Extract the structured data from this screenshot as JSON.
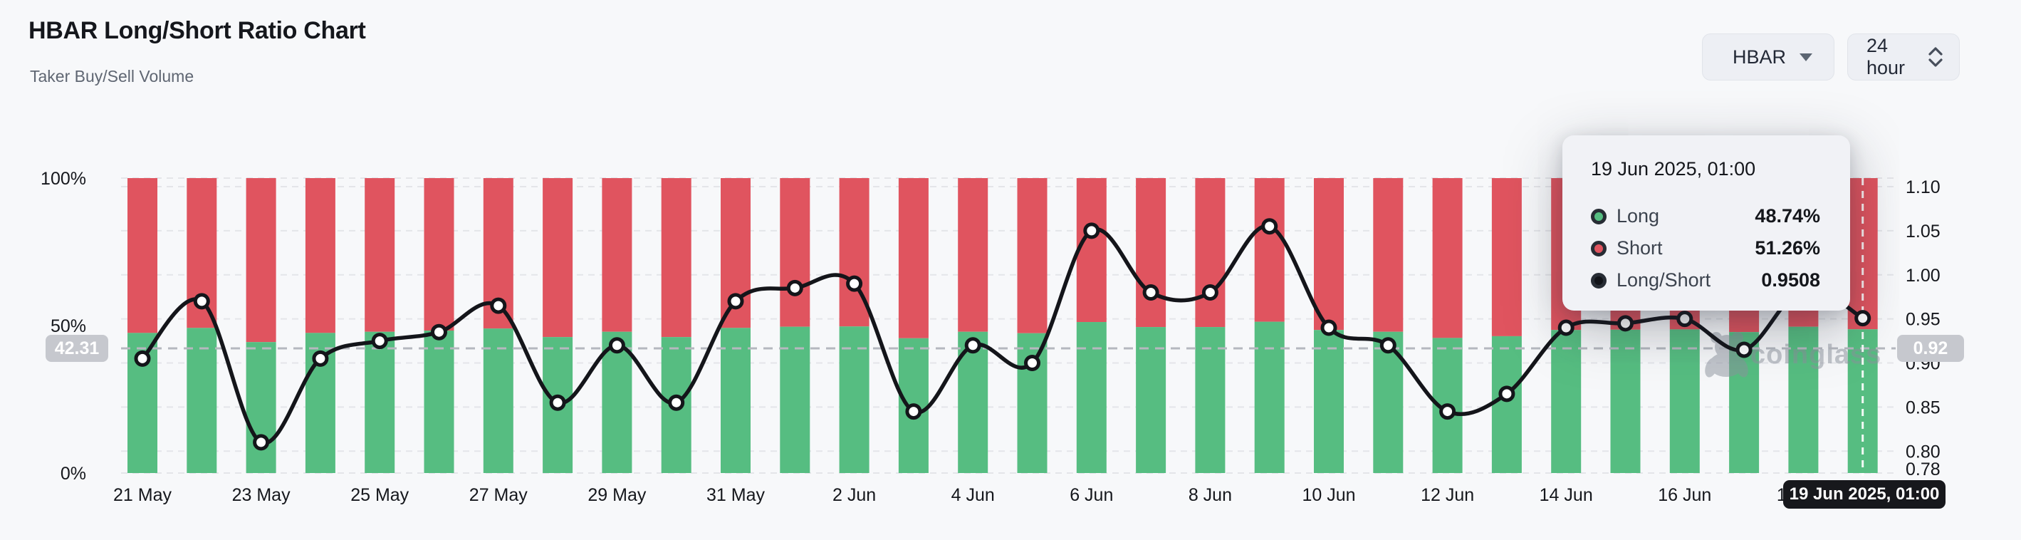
{
  "header": {
    "title": "HBAR Long/Short Ratio Chart",
    "subtitle": "Taker Buy/Sell Volume",
    "symbol_select": {
      "value": "HBAR"
    },
    "interval_select": {
      "value": "24 hour"
    }
  },
  "watermark": {
    "text": "coinglass"
  },
  "tooltip": {
    "title": "19 Jun 2025, 01:00",
    "rows": [
      {
        "label": "Long",
        "value": "48.74%",
        "color": "#56bd81"
      },
      {
        "label": "Short",
        "value": "51.26%",
        "color": "#e0545f"
      },
      {
        "label": "Long/Short",
        "value": "0.9508",
        "color": "#111318"
      }
    ]
  },
  "badges": {
    "cursor_left": "42.31",
    "cursor_right": "0.92",
    "hover_date": "19 Jun 2025, 01:00"
  },
  "chart_data": {
    "type": "bar+line",
    "title": "HBAR Long/Short Ratio Chart",
    "x": [
      "21 May",
      "22 May",
      "23 May",
      "24 May",
      "25 May",
      "26 May",
      "27 May",
      "28 May",
      "29 May",
      "30 May",
      "31 May",
      "1 Jun",
      "2 Jun",
      "3 Jun",
      "4 Jun",
      "5 Jun",
      "6 Jun",
      "7 Jun",
      "8 Jun",
      "9 Jun",
      "10 Jun",
      "11 Jun",
      "12 Jun",
      "13 Jun",
      "14 Jun",
      "15 Jun",
      "16 Jun",
      "17 Jun",
      "18 Jun",
      "19 Jun"
    ],
    "x_tick_every": 2,
    "series": [
      {
        "name": "Long",
        "type": "bar",
        "stack": "pct",
        "color": "#56bd81",
        "unit": "%",
        "values": [
          47.5,
          49.2,
          44.4,
          47.5,
          47.9,
          48.3,
          49.0,
          46.1,
          47.9,
          46.1,
          49.2,
          49.6,
          49.7,
          45.7,
          47.9,
          47.4,
          51.2,
          49.5,
          49.5,
          51.3,
          48.5,
          47.9,
          45.8,
          46.4,
          48.5,
          48.6,
          48.7,
          47.8,
          49.6,
          48.74
        ]
      },
      {
        "name": "Short",
        "type": "bar",
        "stack": "pct",
        "color": "#e0545f",
        "unit": "%",
        "values": [
          52.5,
          50.8,
          55.6,
          52.5,
          52.1,
          51.7,
          51.0,
          53.9,
          52.1,
          53.9,
          50.8,
          50.4,
          50.3,
          54.3,
          52.1,
          52.6,
          48.8,
          50.5,
          50.5,
          48.7,
          51.5,
          52.1,
          54.2,
          53.6,
          51.5,
          51.4,
          51.3,
          52.2,
          50.4,
          51.26
        ]
      },
      {
        "name": "Long/Short",
        "type": "line",
        "axis": "right",
        "color": "#14151a",
        "values": [
          0.905,
          0.97,
          0.81,
          0.905,
          0.925,
          0.935,
          0.965,
          0.855,
          0.92,
          0.855,
          0.97,
          0.985,
          0.99,
          0.845,
          0.92,
          0.9,
          1.05,
          0.98,
          0.98,
          1.055,
          0.94,
          0.92,
          0.845,
          0.865,
          0.94,
          0.945,
          0.95,
          0.915,
          0.985,
          0.9508
        ]
      }
    ],
    "y_axis_left": {
      "ticks": [
        "100%",
        "50%",
        "0%"
      ],
      "range": [
        0,
        100
      ]
    },
    "y_axis_right": {
      "ticks": [
        "1.10",
        "1.05",
        "1.00",
        "0.95",
        "0.90",
        "0.85",
        "0.80",
        "0.78"
      ],
      "range": [
        0.78,
        1.1
      ]
    },
    "grid": "horizontal-dashed",
    "legend_position": "tooltip",
    "hover": {
      "index": 29,
      "x_label": "19 Jun 2025, 01:00",
      "cursor_left_value": "42.31",
      "cursor_right_value": "0.92"
    }
  }
}
